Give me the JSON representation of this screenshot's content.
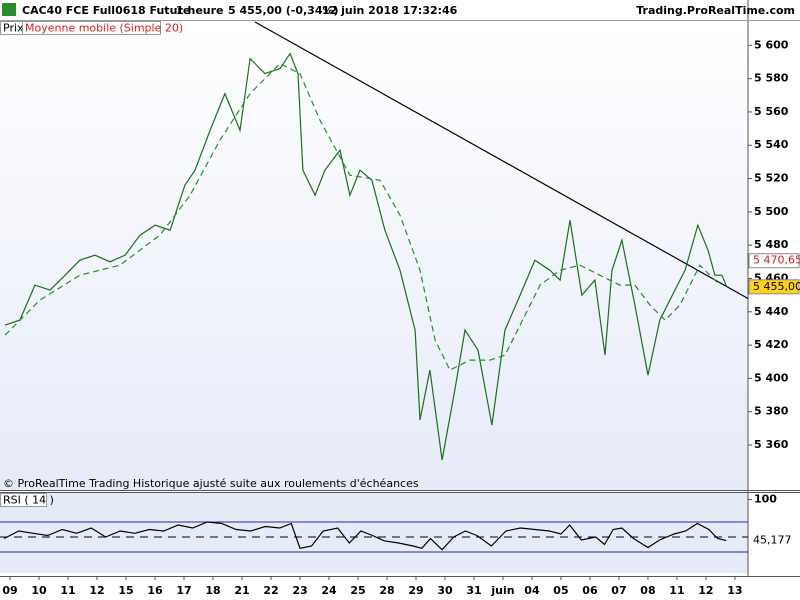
{
  "chart_data": [
    {
      "type": "line",
      "title": "CAC40 FCE Full0618 Future",
      "timeframe": "1 heure",
      "last_quote": "5 455,00 (-0,34%)",
      "timestamp": "12 juin 2018 17:32:46",
      "source": "Trading.ProRealTime.com",
      "note": "© ProRealTime Trading  Historique ajusté suite aux roulements d'échéances",
      "xlim": [
        -0.345,
        25.45
      ],
      "xticks": [
        {
          "value": 0,
          "label": "09"
        },
        {
          "value": 1,
          "label": "10"
        },
        {
          "value": 2,
          "label": "11"
        },
        {
          "value": 3,
          "label": "12"
        },
        {
          "value": 4,
          "label": "15"
        },
        {
          "value": 5,
          "label": "16"
        },
        {
          "value": 6,
          "label": "17"
        },
        {
          "value": 7,
          "label": "18"
        },
        {
          "value": 8,
          "label": "21"
        },
        {
          "value": 9,
          "label": "22"
        },
        {
          "value": 10,
          "label": "23"
        },
        {
          "value": 11,
          "label": "24"
        },
        {
          "value": 12,
          "label": "25"
        },
        {
          "value": 13,
          "label": "28"
        },
        {
          "value": 14,
          "label": "29"
        },
        {
          "value": 15,
          "label": "30"
        },
        {
          "value": 16,
          "label": "31"
        },
        {
          "value": 17,
          "label": "juin"
        },
        {
          "value": 18,
          "label": "04"
        },
        {
          "value": 19,
          "label": "05"
        },
        {
          "value": 20,
          "label": "06"
        },
        {
          "value": 21,
          "label": "07"
        },
        {
          "value": 22,
          "label": "08"
        },
        {
          "value": 23,
          "label": "11"
        },
        {
          "value": 24,
          "label": "12"
        },
        {
          "value": 25,
          "label": "13"
        }
      ],
      "ylim": [
        5333,
        5614
      ],
      "yticks": [
        {
          "value": 5360,
          "label": "5 360"
        },
        {
          "value": 5380,
          "label": "5 380"
        },
        {
          "value": 5400,
          "label": "5 400"
        },
        {
          "value": 5420,
          "label": "5 420"
        },
        {
          "value": 5440,
          "label": "5 440"
        },
        {
          "value": 5460,
          "label": "5 460"
        },
        {
          "value": 5480,
          "label": "5 480"
        },
        {
          "value": 5500,
          "label": "5 500"
        },
        {
          "value": 5520,
          "label": "5 520"
        },
        {
          "value": 5540,
          "label": "5 540"
        },
        {
          "value": 5560,
          "label": "5 560"
        },
        {
          "value": 5580,
          "label": "5 580"
        },
        {
          "value": 5600,
          "label": "5 600"
        }
      ],
      "series": [
        {
          "name": "Prix",
          "color": "#1c6e1c",
          "x": [
            -0.17,
            0.34,
            0.86,
            1.38,
            1.9,
            2.41,
            2.93,
            3.45,
            3.97,
            4.48,
            5,
            5.52,
            6.03,
            6.38,
            6.9,
            7.41,
            7.93,
            8.28,
            8.79,
            9.31,
            9.66,
            9.93,
            10.1,
            10.52,
            10.86,
            11.38,
            11.72,
            12.07,
            12.48,
            12.93,
            13.45,
            13.97,
            14.14,
            14.48,
            14.9,
            15.34,
            15.69,
            16.14,
            16.62,
            17.07,
            17.59,
            18.1,
            18.62,
            18.97,
            19.31,
            19.72,
            20.17,
            20.52,
            20.76,
            21.1,
            21.55,
            22,
            22.41,
            22.93,
            23.28,
            23.72,
            24.07,
            24.31,
            24.55,
            24.72
          ],
          "values": [
            5432,
            5435,
            5456,
            5453,
            5462,
            5471,
            5474,
            5470,
            5474,
            5486,
            5492,
            5489,
            5516,
            5525,
            5549,
            5571,
            5549,
            5592,
            5583,
            5586,
            5595,
            5583,
            5525,
            5510,
            5525,
            5537,
            5510,
            5525,
            5519,
            5489,
            5465,
            5429,
            5375,
            5405,
            5351,
            5393,
            5429,
            5417,
            5372,
            5429,
            5450,
            5471,
            5465,
            5459,
            5495,
            5450,
            5459,
            5414,
            5465,
            5483,
            5444,
            5402,
            5435,
            5453,
            5465,
            5492,
            5477,
            5462,
            5462,
            5455
          ]
        },
        {
          "name": "Moyenne mobile (Simple 20)",
          "color": "#239023",
          "x": [
            -0.17,
            1.03,
            2.41,
            3.79,
            5.17,
            6.21,
            7.24,
            8.28,
            9.31,
            10,
            10.69,
            11.72,
            12.76,
            13.45,
            14.14,
            14.66,
            15.17,
            15.86,
            16.55,
            17.07,
            17.59,
            18.28,
            18.97,
            19.66,
            20.34,
            21.03,
            21.55,
            22.07,
            22.59,
            23.1,
            23.79,
            24.48
          ],
          "values": [
            5426,
            5447,
            5462,
            5468,
            5486,
            5510,
            5543,
            5571,
            5589,
            5583,
            5555,
            5522,
            5519,
            5498,
            5465,
            5423,
            5405,
            5411,
            5411,
            5414,
            5432,
            5456,
            5465,
            5468,
            5462,
            5456,
            5456,
            5444,
            5435,
            5444,
            5468,
            5456
          ]
        }
      ],
      "trendline": {
        "color": "#000000",
        "x": [
          8.45,
          25.45
        ],
        "values": [
          5614,
          5448
        ]
      },
      "price_markers": [
        {
          "value": 5470.65,
          "label": "5 470,65",
          "color": "#ffffff",
          "text_color": "#d02020"
        },
        {
          "value": 5455,
          "label": "5 455,00",
          "color": "#ffd21e",
          "text_color": "#000000"
        }
      ]
    },
    {
      "type": "line",
      "title": "RSI ( 14 )",
      "xlim": [
        -0.345,
        25.45
      ],
      "ylim": [
        2,
        108.7
      ],
      "yticks": [
        100
      ],
      "levels": [
        70,
        30
      ],
      "midline": 50,
      "series": [
        {
          "color": "#000000",
          "x": [
            -0.2,
            0.3,
            0.8,
            1.3,
            1.8,
            2.3,
            2.8,
            3.3,
            3.8,
            4.3,
            4.8,
            5.3,
            5.8,
            6.3,
            6.8,
            7.3,
            7.8,
            8.3,
            8.8,
            9.3,
            9.7,
            10.0,
            10.4,
            10.8,
            11.3,
            11.7,
            12.1,
            12.5,
            12.9,
            13.4,
            13.9,
            14.2,
            14.5,
            14.9,
            15.3,
            15.7,
            16.1,
            16.6,
            17.1,
            17.6,
            18.1,
            18.6,
            19.0,
            19.3,
            19.7,
            20.2,
            20.5,
            20.8,
            21.1,
            21.5,
            22.0,
            22.4,
            22.9,
            23.3,
            23.7,
            24.1,
            24.4,
            24.7
          ],
          "values": [
            48,
            58,
            55,
            52,
            60,
            55,
            62,
            50,
            58,
            55,
            60,
            58,
            66,
            62,
            70,
            68,
            60,
            58,
            64,
            62,
            68,
            35,
            38,
            58,
            62,
            42,
            58,
            52,
            45,
            42,
            38,
            35,
            48,
            33,
            50,
            58,
            52,
            38,
            58,
            62,
            60,
            58,
            54,
            66,
            46,
            50,
            40,
            60,
            62,
            48,
            36,
            46,
            54,
            58,
            68,
            60,
            48,
            45.177
          ]
        }
      ],
      "last_value": {
        "value": 45.177,
        "label": "45,177"
      }
    }
  ]
}
